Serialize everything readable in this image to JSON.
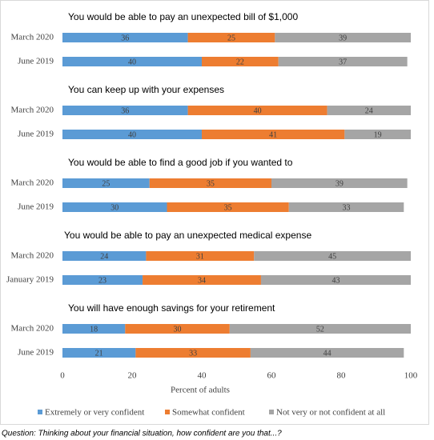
{
  "chart_data": {
    "type": "bar",
    "orientation": "horizontal",
    "stacked": true,
    "xlabel": "Percent of adults",
    "xlim": [
      0,
      100
    ],
    "xticks": [
      0,
      20,
      40,
      60,
      80,
      100
    ],
    "series": [
      {
        "name": "Extremely or very confident",
        "color": "#5b9bd5"
      },
      {
        "name": "Somewhat confident",
        "color": "#ed7d31"
      },
      {
        "name": "Not very or not confident at all",
        "color": "#a5a5a5"
      }
    ],
    "panels": [
      {
        "title": "You would be able to pay an unexpected bill of $1,000",
        "categories": [
          "March 2020",
          "June 2019"
        ],
        "values": [
          [
            36,
            40
          ],
          [
            25,
            22
          ],
          [
            39,
            37
          ]
        ]
      },
      {
        "title": "You can keep up with your expenses",
        "categories": [
          "March 2020",
          "June 2019"
        ],
        "values": [
          [
            36,
            40
          ],
          [
            40,
            41
          ],
          [
            24,
            19
          ]
        ]
      },
      {
        "title": "You would be able to find a good job if you wanted to",
        "categories": [
          "March 2020",
          "June 2019"
        ],
        "values": [
          [
            25,
            30
          ],
          [
            35,
            35
          ],
          [
            39,
            33
          ]
        ]
      },
      {
        "title": "You would be able to pay an unexpected medical expense",
        "categories": [
          "March 2020",
          "January 2019"
        ],
        "values": [
          [
            24,
            23
          ],
          [
            31,
            34
          ],
          [
            45,
            43
          ]
        ]
      },
      {
        "title": "You will have enough savings for your retirement",
        "categories": [
          "March 2020",
          "June 2019"
        ],
        "values": [
          [
            18,
            21
          ],
          [
            30,
            33
          ],
          [
            52,
            44
          ]
        ]
      }
    ],
    "note": "Question: Thinking about your financial situation, how confident are you that...?"
  }
}
